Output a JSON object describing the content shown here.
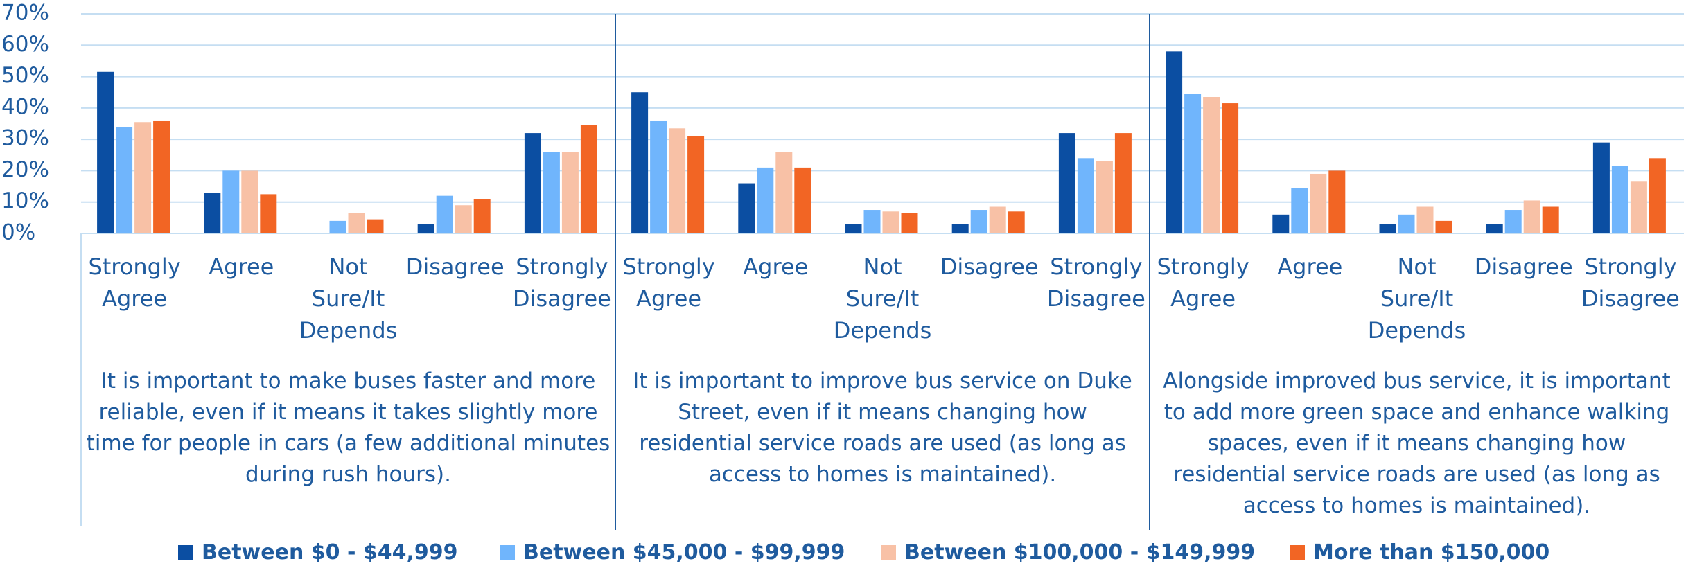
{
  "chart_data": {
    "type": "bar",
    "ylim": [
      0,
      70
    ],
    "yticks": [
      {
        "value": 0,
        "label": "0%"
      },
      {
        "value": 10,
        "label": "10%"
      },
      {
        "value": 20,
        "label": "20%"
      },
      {
        "value": 30,
        "label": "30%"
      },
      {
        "value": 40,
        "label": "40%"
      },
      {
        "value": 50,
        "label": "50%"
      },
      {
        "value": 60,
        "label": "60%"
      },
      {
        "value": 70,
        "label": "70%"
      }
    ],
    "grid": true,
    "panels": [
      {
        "categories": [
          "Strongly Agree",
          "Agree",
          "Not Sure/It Depends",
          "Disagree",
          "Strongly Disagree"
        ],
        "caption": "It is important to make buses faster and more reliable, even if it means it takes slightly more time for people in cars (a few additional minutes during rush hours)."
      },
      {
        "categories": [
          "Strongly Agree",
          "Agree",
          "Not Sure/It Depends",
          "Disagree",
          "Strongly Disagree"
        ],
        "caption": "It is important to improve bus service on Duke Street, even if it means changing how residential service roads are used (as long as access to homes is maintained)."
      },
      {
        "categories": [
          "Strongly Agree",
          "Agree",
          "Not Sure/It Depends",
          "Disagree",
          "Strongly Disagree"
        ],
        "caption": "Alongside improved bus service, it is important to add more green space and enhance walking spaces, even if it means changing how residential service roads are used (as long as access to homes is maintained)."
      }
    ],
    "series": [
      {
        "name": "Between $0 - $44,999",
        "color": "#0b4ea2",
        "values": [
          [
            51.5,
            13,
            0,
            3,
            32
          ],
          [
            45,
            16,
            3,
            3,
            32
          ],
          [
            58,
            6,
            3,
            3,
            29
          ]
        ]
      },
      {
        "name": "Between $45,000 - $99,999",
        "color": "#70b5fc",
        "values": [
          [
            34,
            20,
            4,
            12,
            26
          ],
          [
            36,
            21,
            7.5,
            7.5,
            24
          ],
          [
            44.5,
            14.5,
            6,
            7.5,
            21.5
          ]
        ]
      },
      {
        "name": "Between $100,000 - $149,999",
        "color": "#f8c1a6",
        "values": [
          [
            35.5,
            20,
            6.5,
            9,
            26
          ],
          [
            33.5,
            26,
            7,
            8.5,
            23
          ],
          [
            43.5,
            19,
            8.5,
            10.5,
            16.5
          ]
        ]
      },
      {
        "name": "More than $150,000",
        "color": "#f26524",
        "values": [
          [
            36,
            12.5,
            4.5,
            11,
            34.5
          ],
          [
            31,
            21,
            6.5,
            7,
            32
          ],
          [
            41.5,
            20,
            4,
            8.5,
            24
          ]
        ]
      }
    ]
  }
}
